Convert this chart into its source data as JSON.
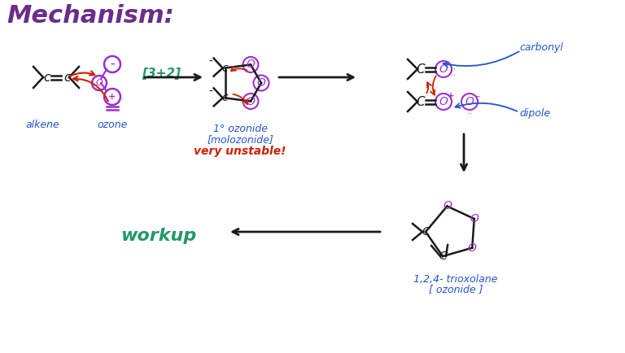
{
  "title": "Mechanism:",
  "title_color": "#6B2D8B",
  "title_fontsize": 22,
  "bg_color": "#ffffff",
  "colors": {
    "black": "#1a1a1a",
    "purple": "#9B30D0",
    "red": "#CC2200",
    "blue": "#2255CC",
    "green": "#229966",
    "dark_purple": "#6B2D8B"
  },
  "labels": {
    "alkene": "alkene",
    "ozone": "ozone",
    "step1": "[3+2]",
    "ozonide1": "1° ozonide",
    "molozonide": "[molozonide]",
    "unstable": "very unstable!",
    "carbonyl": "carbonyl",
    "dipole": "dipole",
    "trioxolane": "1,2,4- trioxolane",
    "ozonide": "[ ozonide ]",
    "workup": "workup"
  }
}
